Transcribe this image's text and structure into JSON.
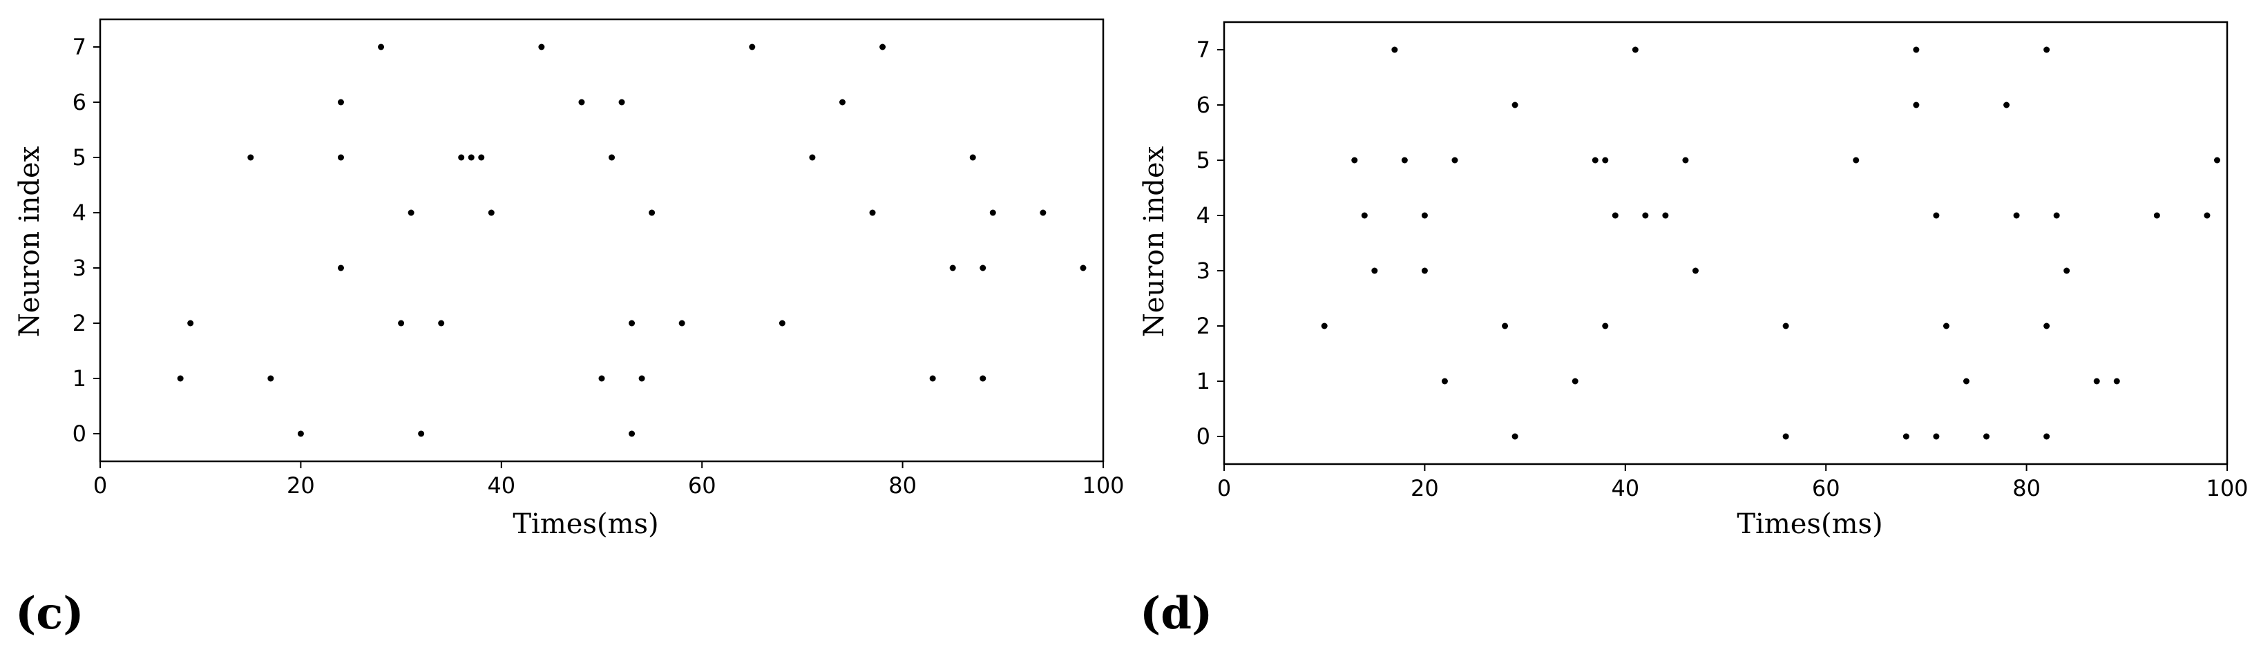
{
  "chart_data": [
    {
      "type": "scatter",
      "panel_label": "(c)",
      "xlabel": "Times(ms)",
      "ylabel": "Neuron index",
      "xlim": [
        0,
        100
      ],
      "ylim": [
        -0.5,
        7.5
      ],
      "xticks": [
        0,
        20,
        40,
        60,
        80,
        100
      ],
      "yticks": [
        0,
        1,
        2,
        3,
        4,
        5,
        6,
        7
      ],
      "grid": false,
      "marker_color": "#000000",
      "points": [
        {
          "x": 8,
          "y": 1
        },
        {
          "x": 9,
          "y": 2
        },
        {
          "x": 15,
          "y": 5
        },
        {
          "x": 17,
          "y": 1
        },
        {
          "x": 20,
          "y": 0
        },
        {
          "x": 24,
          "y": 6
        },
        {
          "x": 24,
          "y": 5
        },
        {
          "x": 24,
          "y": 3
        },
        {
          "x": 28,
          "y": 7
        },
        {
          "x": 30,
          "y": 2
        },
        {
          "x": 31,
          "y": 4
        },
        {
          "x": 32,
          "y": 0
        },
        {
          "x": 34,
          "y": 2
        },
        {
          "x": 36,
          "y": 5
        },
        {
          "x": 37,
          "y": 5
        },
        {
          "x": 38,
          "y": 5
        },
        {
          "x": 39,
          "y": 4
        },
        {
          "x": 44,
          "y": 7
        },
        {
          "x": 48,
          "y": 6
        },
        {
          "x": 50,
          "y": 1
        },
        {
          "x": 51,
          "y": 5
        },
        {
          "x": 52,
          "y": 6
        },
        {
          "x": 53,
          "y": 2
        },
        {
          "x": 53,
          "y": 0
        },
        {
          "x": 54,
          "y": 1
        },
        {
          "x": 55,
          "y": 4
        },
        {
          "x": 58,
          "y": 2
        },
        {
          "x": 65,
          "y": 7
        },
        {
          "x": 68,
          "y": 2
        },
        {
          "x": 71,
          "y": 5
        },
        {
          "x": 74,
          "y": 6
        },
        {
          "x": 77,
          "y": 4
        },
        {
          "x": 78,
          "y": 7
        },
        {
          "x": 83,
          "y": 1
        },
        {
          "x": 85,
          "y": 3
        },
        {
          "x": 87,
          "y": 5
        },
        {
          "x": 88,
          "y": 3
        },
        {
          "x": 88,
          "y": 1
        },
        {
          "x": 89,
          "y": 4
        },
        {
          "x": 94,
          "y": 4
        },
        {
          "x": 98,
          "y": 3
        }
      ]
    },
    {
      "type": "scatter",
      "panel_label": "(d)",
      "xlabel": "Times(ms)",
      "ylabel": "Neuron index",
      "xlim": [
        0,
        100
      ],
      "ylim": [
        -0.5,
        7.5
      ],
      "xticks": [
        0,
        20,
        40,
        60,
        80,
        100
      ],
      "yticks": [
        0,
        1,
        2,
        3,
        4,
        5,
        6,
        7
      ],
      "grid": false,
      "marker_color": "#000000",
      "points": [
        {
          "x": 10,
          "y": 2
        },
        {
          "x": 13,
          "y": 5
        },
        {
          "x": 14,
          "y": 4
        },
        {
          "x": 15,
          "y": 3
        },
        {
          "x": 17,
          "y": 7
        },
        {
          "x": 18,
          "y": 5
        },
        {
          "x": 20,
          "y": 4
        },
        {
          "x": 20,
          "y": 3
        },
        {
          "x": 22,
          "y": 1
        },
        {
          "x": 23,
          "y": 5
        },
        {
          "x": 28,
          "y": 2
        },
        {
          "x": 29,
          "y": 6
        },
        {
          "x": 29,
          "y": 0
        },
        {
          "x": 35,
          "y": 1
        },
        {
          "x": 37,
          "y": 5
        },
        {
          "x": 38,
          "y": 5
        },
        {
          "x": 38,
          "y": 2
        },
        {
          "x": 39,
          "y": 4
        },
        {
          "x": 41,
          "y": 7
        },
        {
          "x": 42,
          "y": 4
        },
        {
          "x": 44,
          "y": 4
        },
        {
          "x": 46,
          "y": 5
        },
        {
          "x": 47,
          "y": 3
        },
        {
          "x": 56,
          "y": 2
        },
        {
          "x": 56,
          "y": 0
        },
        {
          "x": 63,
          "y": 5
        },
        {
          "x": 68,
          "y": 0
        },
        {
          "x": 69,
          "y": 7
        },
        {
          "x": 69,
          "y": 6
        },
        {
          "x": 71,
          "y": 4
        },
        {
          "x": 71,
          "y": 0
        },
        {
          "x": 72,
          "y": 2
        },
        {
          "x": 74,
          "y": 1
        },
        {
          "x": 76,
          "y": 0
        },
        {
          "x": 78,
          "y": 6
        },
        {
          "x": 79,
          "y": 4
        },
        {
          "x": 82,
          "y": 7
        },
        {
          "x": 82,
          "y": 2
        },
        {
          "x": 82,
          "y": 0
        },
        {
          "x": 83,
          "y": 4
        },
        {
          "x": 84,
          "y": 3
        },
        {
          "x": 87,
          "y": 1
        },
        {
          "x": 89,
          "y": 1
        },
        {
          "x": 93,
          "y": 4
        },
        {
          "x": 98,
          "y": 4
        },
        {
          "x": 99,
          "y": 5
        }
      ]
    }
  ]
}
